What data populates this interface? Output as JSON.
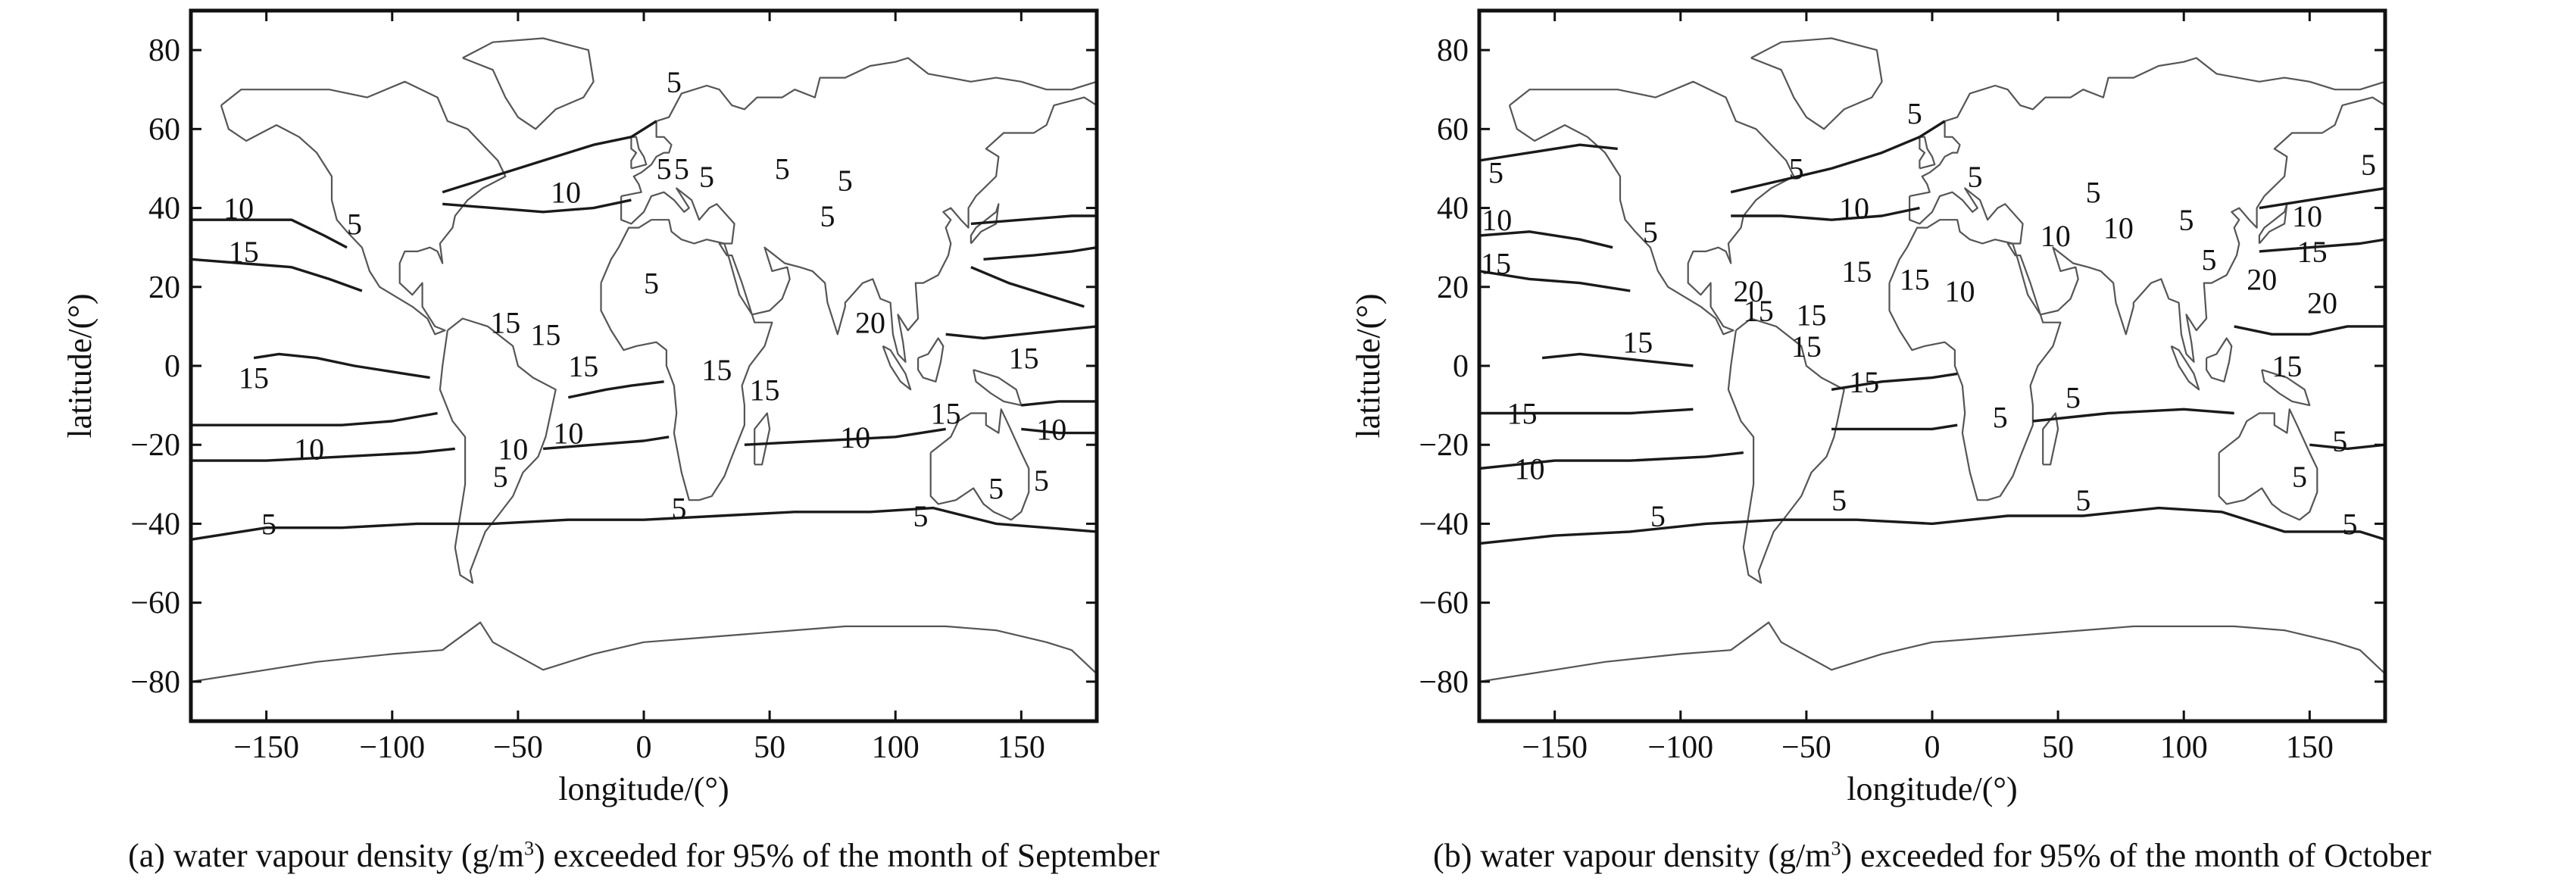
{
  "panels": [
    {
      "id": "a",
      "caption": {
        "prefix": "(a) water vapour density (g/m",
        "sup": "3",
        "suffix": ") exceeded for 95% of the month of September"
      },
      "axes": {
        "xlabel": "longitude/(°)",
        "ylabel": "latitude/(°)",
        "xlim": [
          -180,
          180
        ],
        "ylim": [
          -90,
          90
        ],
        "xticks": [
          -150,
          -100,
          -50,
          0,
          50,
          100,
          150
        ],
        "yticks": [
          80,
          60,
          40,
          20,
          0,
          -20,
          -40,
          -60,
          -80
        ]
      },
      "contour_labels": [
        {
          "text": "5",
          "lon": 12,
          "lat": 72
        },
        {
          "text": "5",
          "lon": 8,
          "lat": 50
        },
        {
          "text": "5",
          "lon": 15,
          "lat": 50
        },
        {
          "text": "5",
          "lon": 25,
          "lat": 48
        },
        {
          "text": "5",
          "lon": 55,
          "lat": 50
        },
        {
          "text": "5",
          "lon": 80,
          "lat": 47
        },
        {
          "text": "5",
          "lon": 73,
          "lat": 38
        },
        {
          "text": "5",
          "lon": -115,
          "lat": 36
        },
        {
          "text": "5",
          "lon": 3,
          "lat": 21
        },
        {
          "text": "10",
          "lon": -161,
          "lat": 40
        },
        {
          "text": "10",
          "lon": -31,
          "lat": 44
        },
        {
          "text": "15",
          "lon": -159,
          "lat": 29
        },
        {
          "text": "15",
          "lon": -155,
          "lat": -3
        },
        {
          "text": "15",
          "lon": -55,
          "lat": 11
        },
        {
          "text": "15",
          "lon": -39,
          "lat": 8
        },
        {
          "text": "15",
          "lon": -24,
          "lat": 0
        },
        {
          "text": "15",
          "lon": 29,
          "lat": -1
        },
        {
          "text": "15",
          "lon": 48,
          "lat": -6
        },
        {
          "text": "15",
          "lon": 151,
          "lat": 2
        },
        {
          "text": "20",
          "lon": 90,
          "lat": 11
        },
        {
          "text": "10",
          "lon": -133,
          "lat": -21
        },
        {
          "text": "10",
          "lon": -52,
          "lat": -21
        },
        {
          "text": "10",
          "lon": -30,
          "lat": -17
        },
        {
          "text": "10",
          "lon": 84,
          "lat": -18
        },
        {
          "text": "15",
          "lon": 120,
          "lat": -12
        },
        {
          "text": "10",
          "lon": 162,
          "lat": -16
        },
        {
          "text": "5",
          "lon": -57,
          "lat": -28
        },
        {
          "text": "5",
          "lon": 14,
          "lat": -36
        },
        {
          "text": "5",
          "lon": 110,
          "lat": -38
        },
        {
          "text": "5",
          "lon": 140,
          "lat": -31
        },
        {
          "text": "5",
          "lon": 158,
          "lat": -29
        },
        {
          "text": "5",
          "lon": -149,
          "lat": -40
        }
      ]
    },
    {
      "id": "b",
      "caption": {
        "prefix": "(b) water vapour density (g/m",
        "sup": "3",
        "suffix": ") exceeded for 95% of the month of October"
      },
      "axes": {
        "xlabel": "longitude/(°)",
        "ylabel": "latitude/(°)",
        "xlim": [
          -180,
          180
        ],
        "ylim": [
          -90,
          90
        ],
        "xticks": [
          -150,
          -100,
          -50,
          0,
          50,
          100,
          150
        ],
        "yticks": [
          80,
          60,
          40,
          20,
          0,
          -20,
          -40,
          -60,
          -80
        ]
      },
      "contour_labels": [
        {
          "text": "5",
          "lon": -7,
          "lat": 64
        },
        {
          "text": "5",
          "lon": -185,
          "lat": 49
        },
        {
          "text": "5",
          "lon": -54,
          "lat": 50
        },
        {
          "text": "5",
          "lon": 17,
          "lat": 48
        },
        {
          "text": "5",
          "lon": 64,
          "lat": 44
        },
        {
          "text": "5",
          "lon": 175,
          "lat": 51
        },
        {
          "text": "5",
          "lon": -112,
          "lat": 34
        },
        {
          "text": "5",
          "lon": 101,
          "lat": 37
        },
        {
          "text": "5",
          "lon": 110,
          "lat": 27
        },
        {
          "text": "10",
          "lon": -173,
          "lat": 37
        },
        {
          "text": "10",
          "lon": -31,
          "lat": 40
        },
        {
          "text": "10",
          "lon": 49,
          "lat": 33
        },
        {
          "text": "10",
          "lon": 74,
          "lat": 35
        },
        {
          "text": "10",
          "lon": 149,
          "lat": 38
        },
        {
          "text": "10",
          "lon": 11,
          "lat": 19
        },
        {
          "text": "15",
          "lon": -176,
          "lat": 26
        },
        {
          "text": "15",
          "lon": -30,
          "lat": 24
        },
        {
          "text": "15",
          "lon": -7,
          "lat": 22
        },
        {
          "text": "15",
          "lon": 151,
          "lat": 29
        },
        {
          "text": "15",
          "lon": -69,
          "lat": 14
        },
        {
          "text": "15",
          "lon": -48,
          "lat": 13
        },
        {
          "text": "15",
          "lon": -117,
          "lat": 6
        },
        {
          "text": "15",
          "lon": -50,
          "lat": 5
        },
        {
          "text": "15",
          "lon": -27,
          "lat": -4
        },
        {
          "text": "15",
          "lon": 141,
          "lat": 0
        },
        {
          "text": "15",
          "lon": -163,
          "lat": -12
        },
        {
          "text": "20",
          "lon": -73,
          "lat": 19
        },
        {
          "text": "20",
          "lon": 131,
          "lat": 22
        },
        {
          "text": "20",
          "lon": 155,
          "lat": 16
        },
        {
          "text": "5",
          "lon": 56,
          "lat": -8
        },
        {
          "text": "5",
          "lon": 27,
          "lat": -13
        },
        {
          "text": "10",
          "lon": -160,
          "lat": -26
        },
        {
          "text": "5",
          "lon": -109,
          "lat": -38
        },
        {
          "text": "5",
          "lon": -37,
          "lat": -34
        },
        {
          "text": "5",
          "lon": 60,
          "lat": -34
        },
        {
          "text": "5",
          "lon": 146,
          "lat": -28
        },
        {
          "text": "5",
          "lon": 162,
          "lat": -19
        },
        {
          "text": "5",
          "lon": 166,
          "lat": -40
        }
      ]
    }
  ]
}
